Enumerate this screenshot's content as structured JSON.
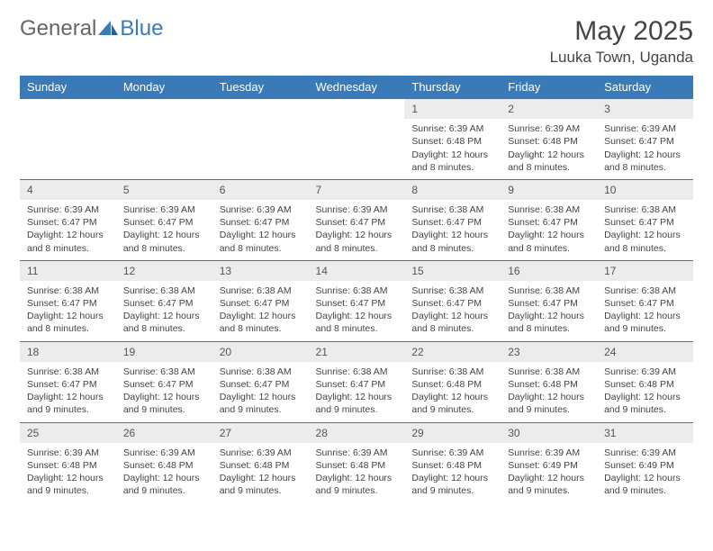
{
  "logo": {
    "text1": "General",
    "text2": "Blue"
  },
  "title": "May 2025",
  "location": "Luuka Town, Uganda",
  "colors": {
    "header_bg": "#3a7ab8",
    "header_fg": "#ffffff",
    "daynum_bg": "#ececec",
    "border": "#3a7ab8",
    "text": "#444444"
  },
  "dayHeaders": [
    "Sunday",
    "Monday",
    "Tuesday",
    "Wednesday",
    "Thursday",
    "Friday",
    "Saturday"
  ],
  "weeks": [
    [
      null,
      null,
      null,
      null,
      {
        "n": "1",
        "sr": "6:39 AM",
        "ss": "6:48 PM",
        "dl": "12 hours and 8 minutes."
      },
      {
        "n": "2",
        "sr": "6:39 AM",
        "ss": "6:48 PM",
        "dl": "12 hours and 8 minutes."
      },
      {
        "n": "3",
        "sr": "6:39 AM",
        "ss": "6:47 PM",
        "dl": "12 hours and 8 minutes."
      }
    ],
    [
      {
        "n": "4",
        "sr": "6:39 AM",
        "ss": "6:47 PM",
        "dl": "12 hours and 8 minutes."
      },
      {
        "n": "5",
        "sr": "6:39 AM",
        "ss": "6:47 PM",
        "dl": "12 hours and 8 minutes."
      },
      {
        "n": "6",
        "sr": "6:39 AM",
        "ss": "6:47 PM",
        "dl": "12 hours and 8 minutes."
      },
      {
        "n": "7",
        "sr": "6:39 AM",
        "ss": "6:47 PM",
        "dl": "12 hours and 8 minutes."
      },
      {
        "n": "8",
        "sr": "6:38 AM",
        "ss": "6:47 PM",
        "dl": "12 hours and 8 minutes."
      },
      {
        "n": "9",
        "sr": "6:38 AM",
        "ss": "6:47 PM",
        "dl": "12 hours and 8 minutes."
      },
      {
        "n": "10",
        "sr": "6:38 AM",
        "ss": "6:47 PM",
        "dl": "12 hours and 8 minutes."
      }
    ],
    [
      {
        "n": "11",
        "sr": "6:38 AM",
        "ss": "6:47 PM",
        "dl": "12 hours and 8 minutes."
      },
      {
        "n": "12",
        "sr": "6:38 AM",
        "ss": "6:47 PM",
        "dl": "12 hours and 8 minutes."
      },
      {
        "n": "13",
        "sr": "6:38 AM",
        "ss": "6:47 PM",
        "dl": "12 hours and 8 minutes."
      },
      {
        "n": "14",
        "sr": "6:38 AM",
        "ss": "6:47 PM",
        "dl": "12 hours and 8 minutes."
      },
      {
        "n": "15",
        "sr": "6:38 AM",
        "ss": "6:47 PM",
        "dl": "12 hours and 8 minutes."
      },
      {
        "n": "16",
        "sr": "6:38 AM",
        "ss": "6:47 PM",
        "dl": "12 hours and 8 minutes."
      },
      {
        "n": "17",
        "sr": "6:38 AM",
        "ss": "6:47 PM",
        "dl": "12 hours and 9 minutes."
      }
    ],
    [
      {
        "n": "18",
        "sr": "6:38 AM",
        "ss": "6:47 PM",
        "dl": "12 hours and 9 minutes."
      },
      {
        "n": "19",
        "sr": "6:38 AM",
        "ss": "6:47 PM",
        "dl": "12 hours and 9 minutes."
      },
      {
        "n": "20",
        "sr": "6:38 AM",
        "ss": "6:47 PM",
        "dl": "12 hours and 9 minutes."
      },
      {
        "n": "21",
        "sr": "6:38 AM",
        "ss": "6:47 PM",
        "dl": "12 hours and 9 minutes."
      },
      {
        "n": "22",
        "sr": "6:38 AM",
        "ss": "6:48 PM",
        "dl": "12 hours and 9 minutes."
      },
      {
        "n": "23",
        "sr": "6:38 AM",
        "ss": "6:48 PM",
        "dl": "12 hours and 9 minutes."
      },
      {
        "n": "24",
        "sr": "6:39 AM",
        "ss": "6:48 PM",
        "dl": "12 hours and 9 minutes."
      }
    ],
    [
      {
        "n": "25",
        "sr": "6:39 AM",
        "ss": "6:48 PM",
        "dl": "12 hours and 9 minutes."
      },
      {
        "n": "26",
        "sr": "6:39 AM",
        "ss": "6:48 PM",
        "dl": "12 hours and 9 minutes."
      },
      {
        "n": "27",
        "sr": "6:39 AM",
        "ss": "6:48 PM",
        "dl": "12 hours and 9 minutes."
      },
      {
        "n": "28",
        "sr": "6:39 AM",
        "ss": "6:48 PM",
        "dl": "12 hours and 9 minutes."
      },
      {
        "n": "29",
        "sr": "6:39 AM",
        "ss": "6:48 PM",
        "dl": "12 hours and 9 minutes."
      },
      {
        "n": "30",
        "sr": "6:39 AM",
        "ss": "6:49 PM",
        "dl": "12 hours and 9 minutes."
      },
      {
        "n": "31",
        "sr": "6:39 AM",
        "ss": "6:49 PM",
        "dl": "12 hours and 9 minutes."
      }
    ]
  ],
  "labels": {
    "sunrise": "Sunrise:",
    "sunset": "Sunset:",
    "daylight": "Daylight:"
  }
}
